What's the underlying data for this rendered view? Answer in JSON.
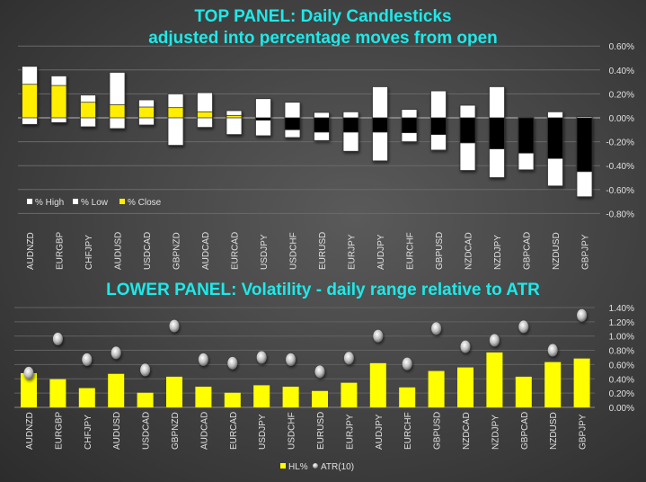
{
  "colors": {
    "title": "#1de9e9",
    "close_up": "#ffee00",
    "close_down": "#000000",
    "range": "#ffffff",
    "hl_bar": "#ffff00",
    "atr_marker": "#d8d8d8"
  },
  "chart_data": [
    {
      "type": "candlestick",
      "title_line1": "TOP PANEL: Daily Candlesticks",
      "title_line2": "adjusted into percentage moves from open",
      "categories": [
        "AUDNZD",
        "EURGBP",
        "CHFJPY",
        "AUDUSD",
        "USDCAD",
        "GBPNZD",
        "AUDCAD",
        "EURCAD",
        "USDJPY",
        "USDCHF",
        "EURUSD",
        "EURJPY",
        "AUDJPY",
        "EURCHF",
        "GBPUSD",
        "NZDCAD",
        "NZDJPY",
        "GBPCAD",
        "NZDUSD",
        "GBPJPY"
      ],
      "series": [
        {
          "name": "% High",
          "values": [
            0.43,
            0.35,
            0.19,
            0.38,
            0.15,
            0.2,
            0.21,
            0.06,
            0.16,
            0.13,
            0.045,
            0.05,
            0.26,
            0.07,
            0.225,
            0.105,
            0.26,
            0.0,
            0.05,
            0.01
          ]
        },
        {
          "name": "% Low",
          "values": [
            -0.055,
            -0.04,
            -0.075,
            -0.09,
            -0.06,
            -0.23,
            -0.08,
            -0.14,
            -0.15,
            -0.165,
            -0.19,
            -0.28,
            -0.36,
            -0.2,
            -0.27,
            -0.44,
            -0.5,
            -0.435,
            -0.57,
            -0.66
          ]
        },
        {
          "name": "% Close",
          "values": [
            0.28,
            0.27,
            0.13,
            0.11,
            0.09,
            0.085,
            0.05,
            0.02,
            -0.02,
            -0.1,
            -0.12,
            -0.12,
            -0.12,
            -0.125,
            -0.14,
            -0.21,
            -0.26,
            -0.295,
            -0.34,
            -0.45
          ]
        }
      ],
      "ylim": [
        -0.8,
        0.6
      ],
      "yticks": [
        "0.60%",
        "0.40%",
        "0.20%",
        "0.00%",
        "-0.20%",
        "-0.40%",
        "-0.60%",
        "-0.80%"
      ],
      "ytick_values": [
        0.6,
        0.4,
        0.2,
        0,
        -0.2,
        -0.4,
        -0.6,
        -0.8
      ],
      "grid": true,
      "legend": "bottom-left"
    },
    {
      "type": "bar",
      "title": "LOWER PANEL: Volatility - daily range relative to ATR",
      "categories": [
        "AUDNZD",
        "EURGBP",
        "CHFJPY",
        "AUDUSD",
        "USDCAD",
        "GBPNZD",
        "AUDCAD",
        "EURCAD",
        "USDJPY",
        "USDCHF",
        "EURUSD",
        "EURJPY",
        "AUDJPY",
        "EURCHF",
        "GBPUSD",
        "NZDCAD",
        "NZDJPY",
        "GBPCAD",
        "NZDUSD",
        "GBPJPY"
      ],
      "series": [
        {
          "name": "HL%",
          "type": "bar",
          "values": [
            0.48,
            0.395,
            0.27,
            0.47,
            0.205,
            0.43,
            0.29,
            0.205,
            0.31,
            0.29,
            0.23,
            0.345,
            0.62,
            0.28,
            0.51,
            0.56,
            0.77,
            0.43,
            0.635,
            0.685
          ]
        },
        {
          "name": "ATR(10)",
          "type": "marker",
          "values": [
            0.48,
            0.96,
            0.67,
            0.765,
            0.525,
            1.14,
            0.67,
            0.62,
            0.7,
            0.67,
            0.5,
            0.69,
            1.0,
            0.61,
            1.105,
            0.85,
            0.94,
            1.13,
            0.8,
            1.29
          ]
        }
      ],
      "ylim": [
        0,
        1.4
      ],
      "yticks": [
        "1.40%",
        "1.20%",
        "1.00%",
        "0.80%",
        "0.60%",
        "0.40%",
        "0.20%",
        "0.00%"
      ],
      "ytick_values": [
        1.4,
        1.2,
        1.0,
        0.8,
        0.6,
        0.4,
        0.2,
        0
      ],
      "grid": true,
      "legend": "bottom"
    }
  ]
}
